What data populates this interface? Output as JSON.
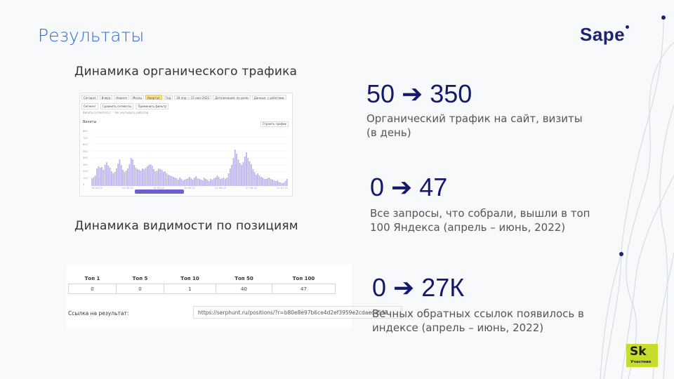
{
  "slide": {
    "title": "Результаты",
    "logo_text": "Sape",
    "section_traffic_heading": "Динамика органического трафика",
    "section_visibility_heading": "Динамика видимости по позициям"
  },
  "stats": [
    {
      "value": "50 ➔ 350",
      "description": "Органический трафик на сайт, визиты (в день)"
    },
    {
      "value": "0 ➔ 47",
      "description": "Все запросы, что собрали,  вышли в топ 100 Яндекса (апрель – июнь, 2022)"
    },
    {
      "value": "0 ➔ 27К",
      "description": "Вечных обратных ссылок появилось в индексе (апрель – июнь, 2022)"
    }
  ],
  "traffic_screenshot": {
    "tabs": [
      "Сегодня",
      "Вчера",
      "Неделя",
      "Месяц",
      "Квартал",
      "Год",
      "18 апр — 15 июл 2022",
      "Детализация: по дням",
      "Данные: с роботами"
    ],
    "active_tab": 4,
    "filters": [
      "Сегмент",
      "Сравнить сегменты",
      "Применить фильтр"
    ],
    "options": [
      "Визиты (отметить)",
      "Не учитывать роботов"
    ],
    "chart_label": "Визиты",
    "chart_switch": "Строить график",
    "y_ticks": [
      "800",
      "700",
      "600",
      "500",
      "400",
      "300",
      "200",
      "100",
      "0"
    ],
    "x_ticks": [
      "18.04.22",
      "02.05.22",
      "16.05.22",
      "30.05.22",
      "13.06.22",
      "27.06.22",
      "11.07.22"
    ],
    "bar_color": "#bcb3ea"
  },
  "positions_table": {
    "headers": [
      "Топ 1",
      "Топ 5",
      "Топ 10",
      "Топ 50",
      "Топ 100"
    ],
    "values": [
      "0",
      "0",
      "1",
      "40",
      "47"
    ],
    "link_label": "Ссылка на результат:",
    "link_value": "https://serphunt.ru/positions/?r=b80e8e97b6ce4d2ef3959e2cdaeda538"
  },
  "badge": {
    "mark": "Sk",
    "text": "Участник"
  },
  "colors": {
    "title": "#2b6bd3",
    "stat": "#14196b",
    "brand": "#1c2370",
    "badge": "#c7dc2c"
  },
  "chart_data": {
    "type": "bar",
    "title": "Визиты",
    "ylim": [
      0,
      800
    ],
    "x_start": "18.04.22",
    "x_end": "15.07.22",
    "values": [
      110,
      130,
      150,
      250,
      280,
      260,
      270,
      230,
      300,
      340,
      290,
      260,
      210,
      180,
      200,
      250,
      320,
      380,
      300,
      230,
      200,
      220,
      250,
      310,
      400,
      380,
      300,
      260,
      240,
      230,
      220,
      250,
      240,
      260,
      280,
      300,
      310,
      290,
      240,
      210,
      220,
      250,
      240,
      230,
      200,
      210,
      180,
      160,
      150,
      140,
      130,
      120,
      110,
      90,
      120,
      100,
      80,
      90,
      100,
      110,
      130,
      110,
      90,
      120,
      140,
      110,
      100,
      90,
      80,
      120,
      100,
      90,
      70,
      100,
      90,
      110,
      120,
      150,
      130,
      100,
      110,
      120,
      100,
      120,
      180,
      250,
      300,
      400,
      520,
      460,
      380,
      330,
      300,
      340,
      420,
      480,
      400,
      350,
      310,
      240,
      200,
      160,
      180,
      150,
      130,
      120,
      100,
      100,
      110,
      120,
      100,
      90,
      80,
      70,
      80,
      60,
      50,
      40,
      50,
      70,
      100
    ]
  }
}
